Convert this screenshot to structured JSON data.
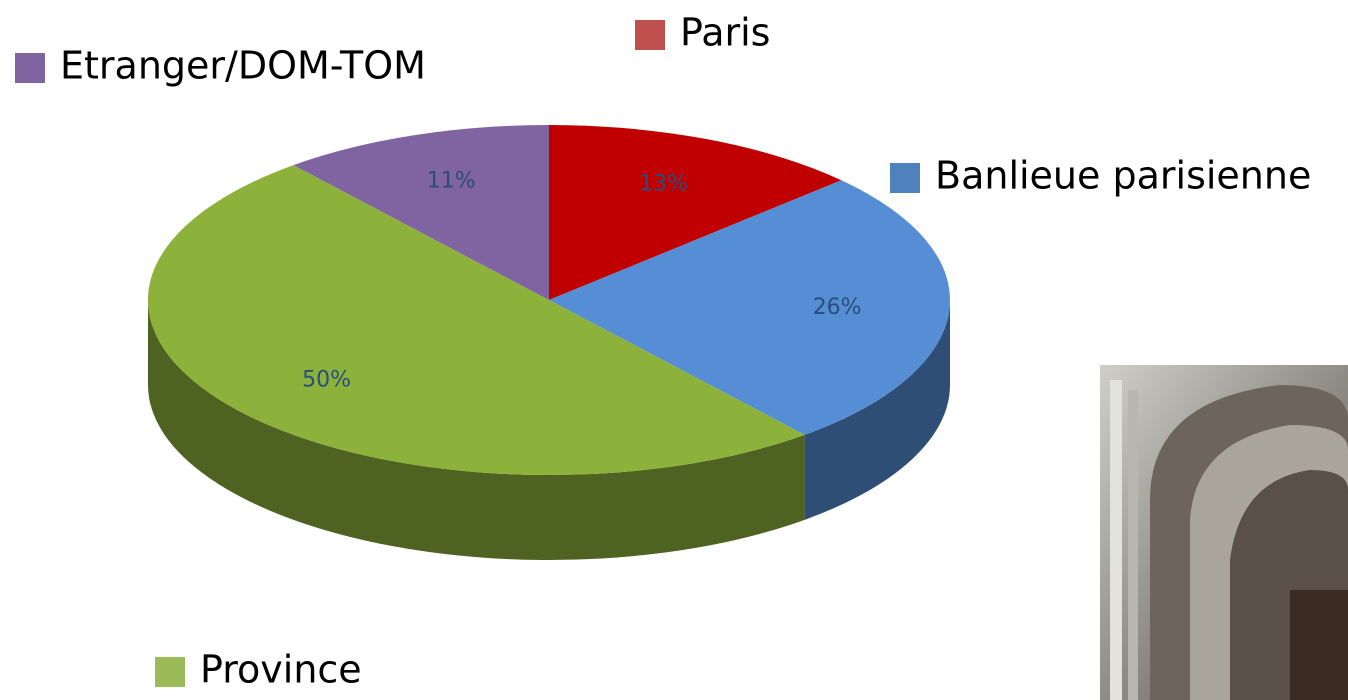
{
  "chart_data": {
    "type": "pie3d",
    "categories": [
      "Paris",
      "Banlieue parisienne",
      "Province",
      "Etranger/DOM-TOM"
    ],
    "values": [
      13,
      26,
      50,
      11
    ],
    "value_labels": [
      "13%",
      "26%",
      "50%",
      "11%"
    ],
    "colors": [
      "#c00000",
      "#558ed5",
      "#8db23c",
      "#8064a2"
    ],
    "legend_colors": [
      "#c0504d",
      "#4f81bd",
      "#9bbb59",
      "#8064a2"
    ]
  }
}
